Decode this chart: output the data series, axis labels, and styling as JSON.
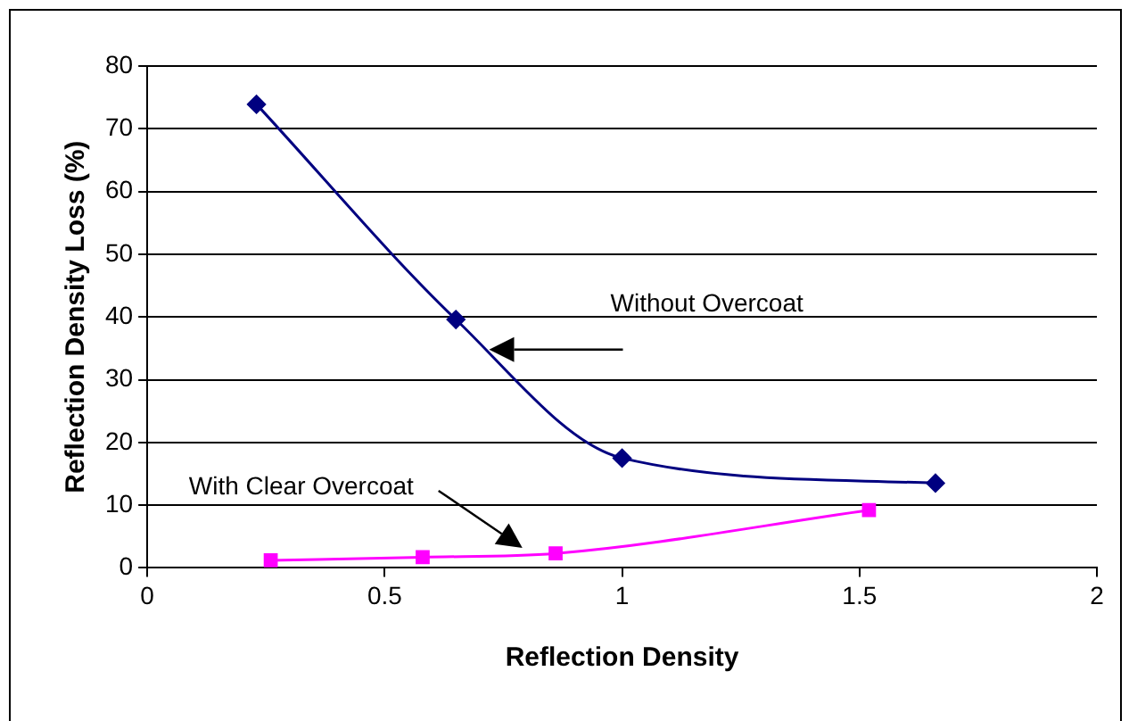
{
  "chart_data": {
    "type": "line",
    "xlabel": "Reflection Density",
    "ylabel": "Reflection Density Loss (%)",
    "annotations": [
      "Without Overcoat",
      "With Clear Overcoat"
    ],
    "xlim": [
      0,
      2
    ],
    "xticks": [
      0,
      0.5,
      1,
      1.5,
      2
    ],
    "ylim": [
      0,
      80
    ],
    "yticks": [
      0,
      10,
      20,
      30,
      40,
      50,
      60,
      70,
      80
    ],
    "grid": "y",
    "legend": false,
    "series": [
      {
        "color": "#000080",
        "marker": "diamond",
        "x": [
          0.23,
          0.65,
          1.0,
          1.66
        ],
        "values": [
          73.9,
          39.6,
          17.5,
          13.5
        ]
      },
      {
        "color": "#ff00ff",
        "marker": "square",
        "x": [
          0.26,
          0.58,
          0.86,
          1.52
        ],
        "values": [
          1.2,
          1.7,
          2.3,
          9.2
        ]
      }
    ]
  }
}
